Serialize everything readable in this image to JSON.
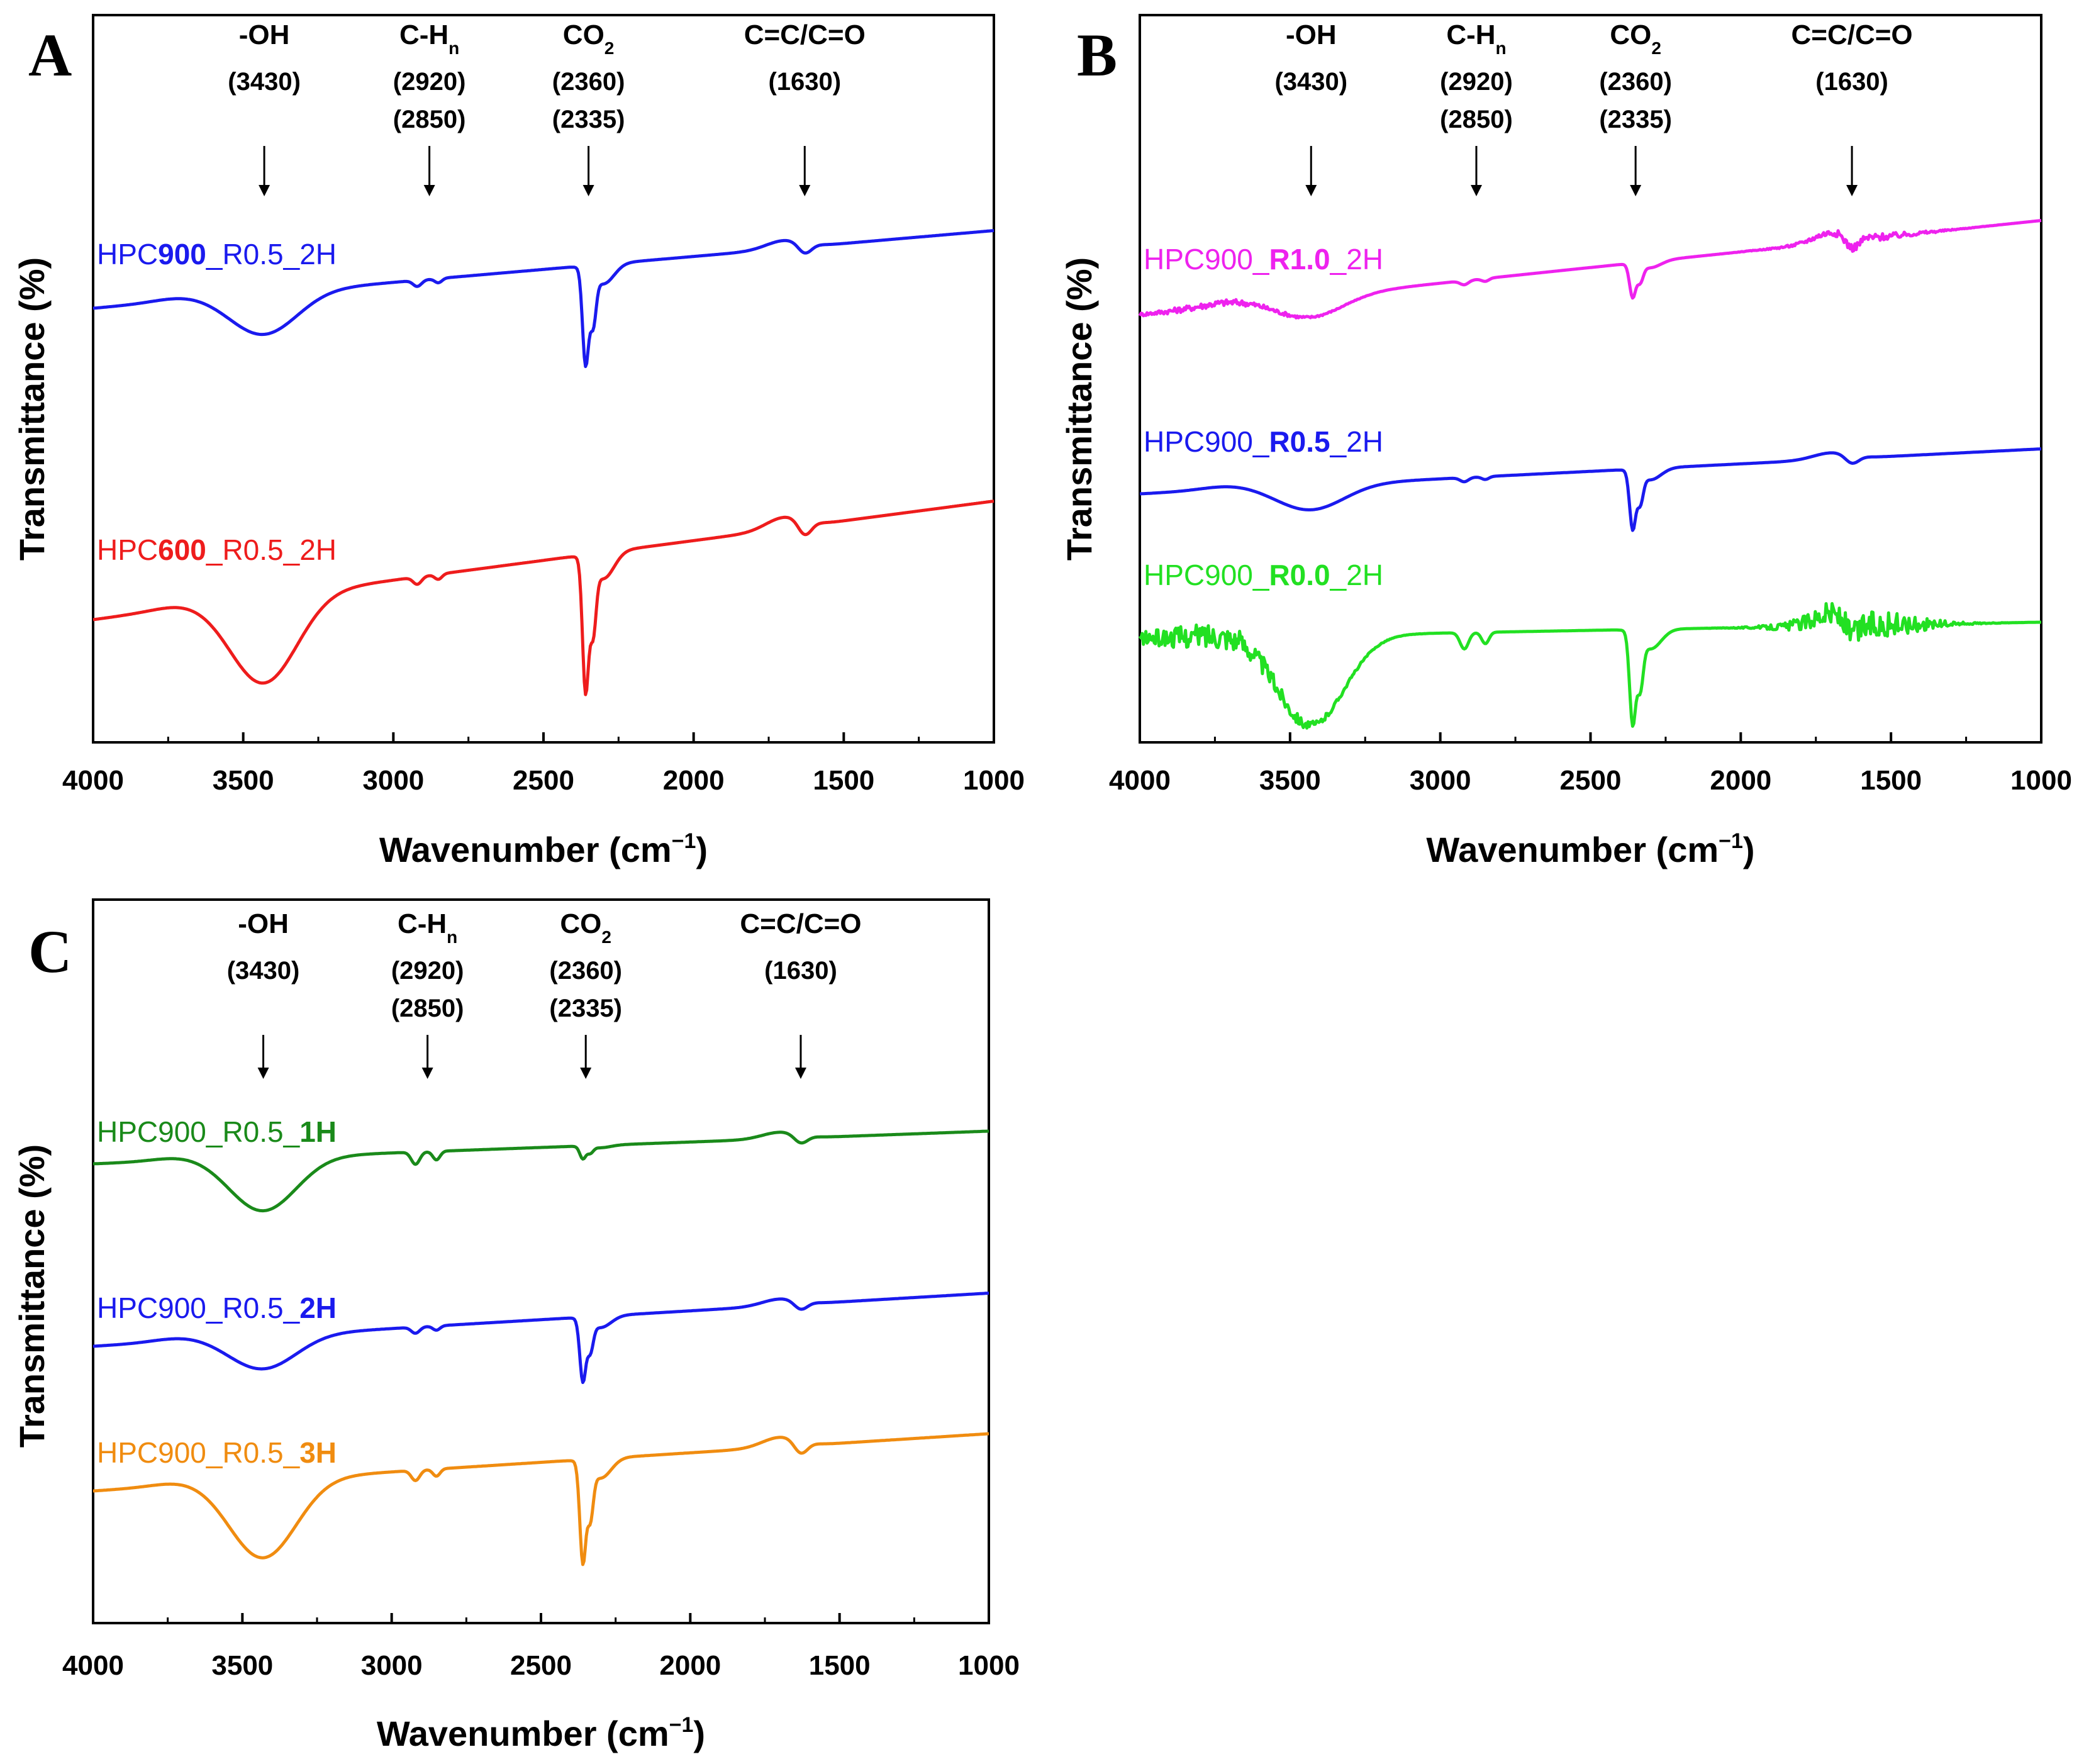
{
  "chart_data": [
    {
      "panel": "A",
      "type": "line",
      "xlabel": "Wavenumber (cm",
      "xlabel_sup": "−1",
      "xlabel_end": ")",
      "ylabel": "Transmittance (%)",
      "xlim": [
        4000,
        1000
      ],
      "ylim": [
        0,
        100
      ],
      "xticks": [
        "4000",
        "3500",
        "3000",
        "2500",
        "2000",
        "1500",
        "1000"
      ],
      "peaks": [
        {
          "name": "-OH",
          "positions": [
            "(3430)"
          ],
          "x": 3430
        },
        {
          "name": "C-H",
          "sub": "n",
          "positions": [
            "(2920)",
            "(2850)"
          ],
          "x": 2880
        },
        {
          "name": "CO",
          "sub": "2",
          "positions": [
            "(2360)",
            "(2335)"
          ],
          "x": 2350
        },
        {
          "name": "C=C/C=O",
          "positions": [
            "(1630)"
          ],
          "x": 1630
        }
      ],
      "series": [
        {
          "label_pre": "HPC",
          "label_bold": "900",
          "label_post": "_R0.5_2H",
          "color": "#1a1aee",
          "baseline": 79,
          "slope": 19,
          "oh": 10,
          "ch": 1.5,
          "co2a": 23,
          "co2b": 12,
          "cc": 2.5,
          "noise": 0
        },
        {
          "label_pre": "HPC",
          "label_bold": "600",
          "label_post": "_R0.5_2H",
          "color": "#ee1c1c",
          "baseline": 36,
          "slope": 29,
          "oh": 21,
          "ch": 1.8,
          "co2a": 32,
          "co2b": 16,
          "cc": 3.5,
          "noise": 0
        }
      ]
    },
    {
      "panel": "B",
      "type": "line",
      "xlabel": "Wavenumber (cm",
      "xlabel_sup": "−1",
      "xlabel_end": ")",
      "ylabel": "Transmittance (%)",
      "xlim": [
        4000,
        1000
      ],
      "ylim": [
        0,
        100
      ],
      "xticks": [
        "4000",
        "3500",
        "3000",
        "2500",
        "2000",
        "1500",
        "1000"
      ],
      "peaks": [
        {
          "name": "-OH",
          "positions": [
            "(3430)"
          ],
          "x": 3430
        },
        {
          "name": "C-H",
          "sub": "n",
          "positions": [
            "(2920)",
            "(2850)"
          ],
          "x": 2880
        },
        {
          "name": "CO",
          "sub": "2",
          "positions": [
            "(2360)",
            "(2335)"
          ],
          "x": 2350
        },
        {
          "name": "C=C/C=O",
          "positions": [
            "(1630)"
          ],
          "x": 1630
        }
      ],
      "series": [
        {
          "label_pre": "HPC900_",
          "label_bold": "R1.0",
          "label_post": "_2H",
          "color": "#ee22ee",
          "baseline": 75,
          "slope": 23,
          "oh": 5,
          "ch": 1,
          "co2a": 8,
          "co2b": 4,
          "cc": 3,
          "noise": 0.8
        },
        {
          "label_pre": "HPC900_",
          "label_bold": "R0.5",
          "label_post": "_2H",
          "color": "#1a1aee",
          "baseline": 43,
          "slope": 11,
          "oh": 6,
          "ch": 1,
          "co2a": 14,
          "co2b": 7,
          "cc": 2,
          "noise": 0
        },
        {
          "label_pre": "HPC900_",
          "label_bold": "R0.0",
          "label_post": "_2H",
          "color": "#22e022",
          "baseline": 17,
          "slope": 4,
          "oh": 22,
          "ch": 4,
          "co2a": 22,
          "co2b": 12,
          "cc": 4,
          "noise": 3
        }
      ]
    },
    {
      "panel": "C",
      "type": "line",
      "xlabel": "Wavenumber (cm",
      "xlabel_sup": "−1",
      "xlabel_end": ")",
      "ylabel": "Transmittance (%)",
      "xlim": [
        4000,
        1000
      ],
      "ylim": [
        0,
        100
      ],
      "xticks": [
        "4000",
        "3500",
        "3000",
        "2500",
        "2000",
        "1500",
        "1000"
      ],
      "peaks": [
        {
          "name": "-OH",
          "positions": [
            "(3430)"
          ],
          "x": 3430
        },
        {
          "name": "C-H",
          "sub": "n",
          "positions": [
            "(2920)",
            "(2850)"
          ],
          "x": 2880
        },
        {
          "name": "CO",
          "sub": "2",
          "positions": [
            "(2360)",
            "(2335)"
          ],
          "x": 2350
        },
        {
          "name": "C=C/C=O",
          "positions": [
            "(1630)"
          ],
          "x": 1630
        }
      ],
      "series": [
        {
          "label_pre": "HPC900_R0.5_",
          "label_bold": "1H",
          "label_post": "",
          "color": "#1a8a1a",
          "baseline": 69,
          "slope": 8,
          "oh": 13,
          "ch": 3,
          "co2a": 3,
          "co2b": 1.5,
          "cc": 2,
          "noise": 0
        },
        {
          "label_pre": "HPC900_R0.5_",
          "label_bold": "2H",
          "label_post": "",
          "color": "#1a1aee",
          "baseline": 43,
          "slope": 13,
          "oh": 8,
          "ch": 1.5,
          "co2a": 15,
          "co2b": 7,
          "cc": 2,
          "noise": 0
        },
        {
          "label_pre": "HPC900_R0.5_",
          "label_bold": "3H",
          "label_post": "",
          "color": "#f08c10",
          "baseline": 20,
          "slope": 14,
          "oh": 19,
          "ch": 2.5,
          "co2a": 24,
          "co2b": 12,
          "cc": 3,
          "noise": 0
        }
      ]
    }
  ]
}
